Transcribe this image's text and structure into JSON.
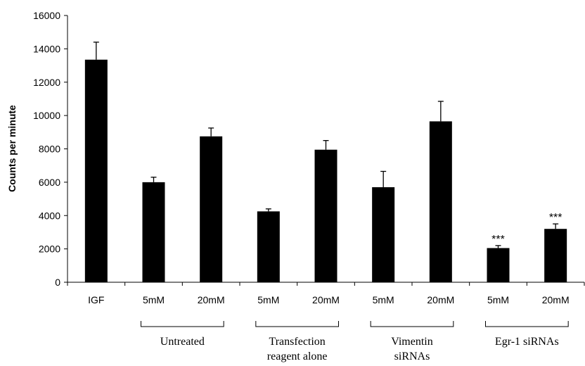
{
  "chart_data": {
    "type": "bar",
    "ylabel": "Counts per minute",
    "ylim": [
      0,
      16000
    ],
    "yticks": [
      0,
      2000,
      4000,
      6000,
      8000,
      10000,
      12000,
      14000,
      16000
    ],
    "categories": [
      "IGF",
      "5mM",
      "20mM",
      "5mM",
      "20mM",
      "5mM",
      "20mM",
      "5mM",
      "20mM"
    ],
    "values": [
      13350,
      6000,
      8750,
      4250,
      7950,
      5700,
      9650,
      2050,
      3200
    ],
    "errors": [
      1050,
      300,
      500,
      150,
      550,
      950,
      1200,
      150,
      300
    ],
    "annotations": [
      "",
      "",
      "",
      "",
      "",
      "",
      "",
      "***",
      "***"
    ],
    "groups": [
      {
        "lines": [
          "Untreated"
        ],
        "bars": [
          1,
          2
        ]
      },
      {
        "lines": [
          "Transfection",
          "reagent alone"
        ],
        "bars": [
          3,
          4
        ]
      },
      {
        "lines": [
          "Vimentin",
          "siRNAs"
        ],
        "bars": [
          5,
          6
        ]
      },
      {
        "lines": [
          "Egr-1 siRNAs"
        ],
        "bars": [
          7,
          8
        ]
      }
    ],
    "bar_color": "#000000",
    "grid": false
  }
}
